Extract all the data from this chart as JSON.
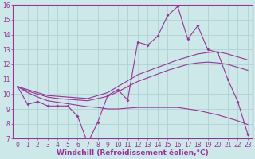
{
  "x": [
    0,
    1,
    2,
    3,
    4,
    5,
    6,
    7,
    8,
    9,
    10,
    11,
    12,
    13,
    14,
    15,
    16,
    17,
    18,
    19,
    20,
    21,
    22,
    23
  ],
  "main_line": [
    10.5,
    9.3,
    9.5,
    9.2,
    9.2,
    9.2,
    8.5,
    6.7,
    8.1,
    9.9,
    10.3,
    9.6,
    13.5,
    13.3,
    13.9,
    15.3,
    15.9,
    13.7,
    14.6,
    13.0,
    12.8,
    11.0,
    9.5,
    7.3
  ],
  "upper_line": [
    10.5,
    10.3,
    10.1,
    9.9,
    9.85,
    9.8,
    9.75,
    9.7,
    9.9,
    10.1,
    10.5,
    10.9,
    11.3,
    11.55,
    11.8,
    12.05,
    12.3,
    12.5,
    12.7,
    12.8,
    12.85,
    12.7,
    12.5,
    12.3
  ],
  "middle_line": [
    10.5,
    10.2,
    10.0,
    9.8,
    9.7,
    9.65,
    9.6,
    9.55,
    9.7,
    9.85,
    10.15,
    10.5,
    10.85,
    11.1,
    11.35,
    11.6,
    11.8,
    12.0,
    12.1,
    12.15,
    12.1,
    12.0,
    11.8,
    11.6
  ],
  "lower_line": [
    10.5,
    10.1,
    9.8,
    9.55,
    9.45,
    9.35,
    9.25,
    9.15,
    9.1,
    9.0,
    9.0,
    9.05,
    9.1,
    9.1,
    9.1,
    9.1,
    9.1,
    9.0,
    8.9,
    8.75,
    8.6,
    8.4,
    8.2,
    7.95
  ],
  "line_color": "#993399",
  "bg_color": "#cce8e8",
  "grid_color": "#aacece",
  "xlabel": "Windchill (Refroidissement éolien,°C)",
  "ylim": [
    7,
    16
  ],
  "xlim": [
    -0.5,
    23.5
  ],
  "yticks": [
    7,
    8,
    9,
    10,
    11,
    12,
    13,
    14,
    15,
    16
  ],
  "xticks": [
    0,
    1,
    2,
    3,
    4,
    5,
    6,
    7,
    8,
    9,
    10,
    11,
    12,
    13,
    14,
    15,
    16,
    17,
    18,
    19,
    20,
    21,
    22,
    23
  ],
  "tick_fontsize": 5.5,
  "xlabel_fontsize": 6.5,
  "marker": "D",
  "marker_size": 2.0,
  "linewidth": 0.8
}
